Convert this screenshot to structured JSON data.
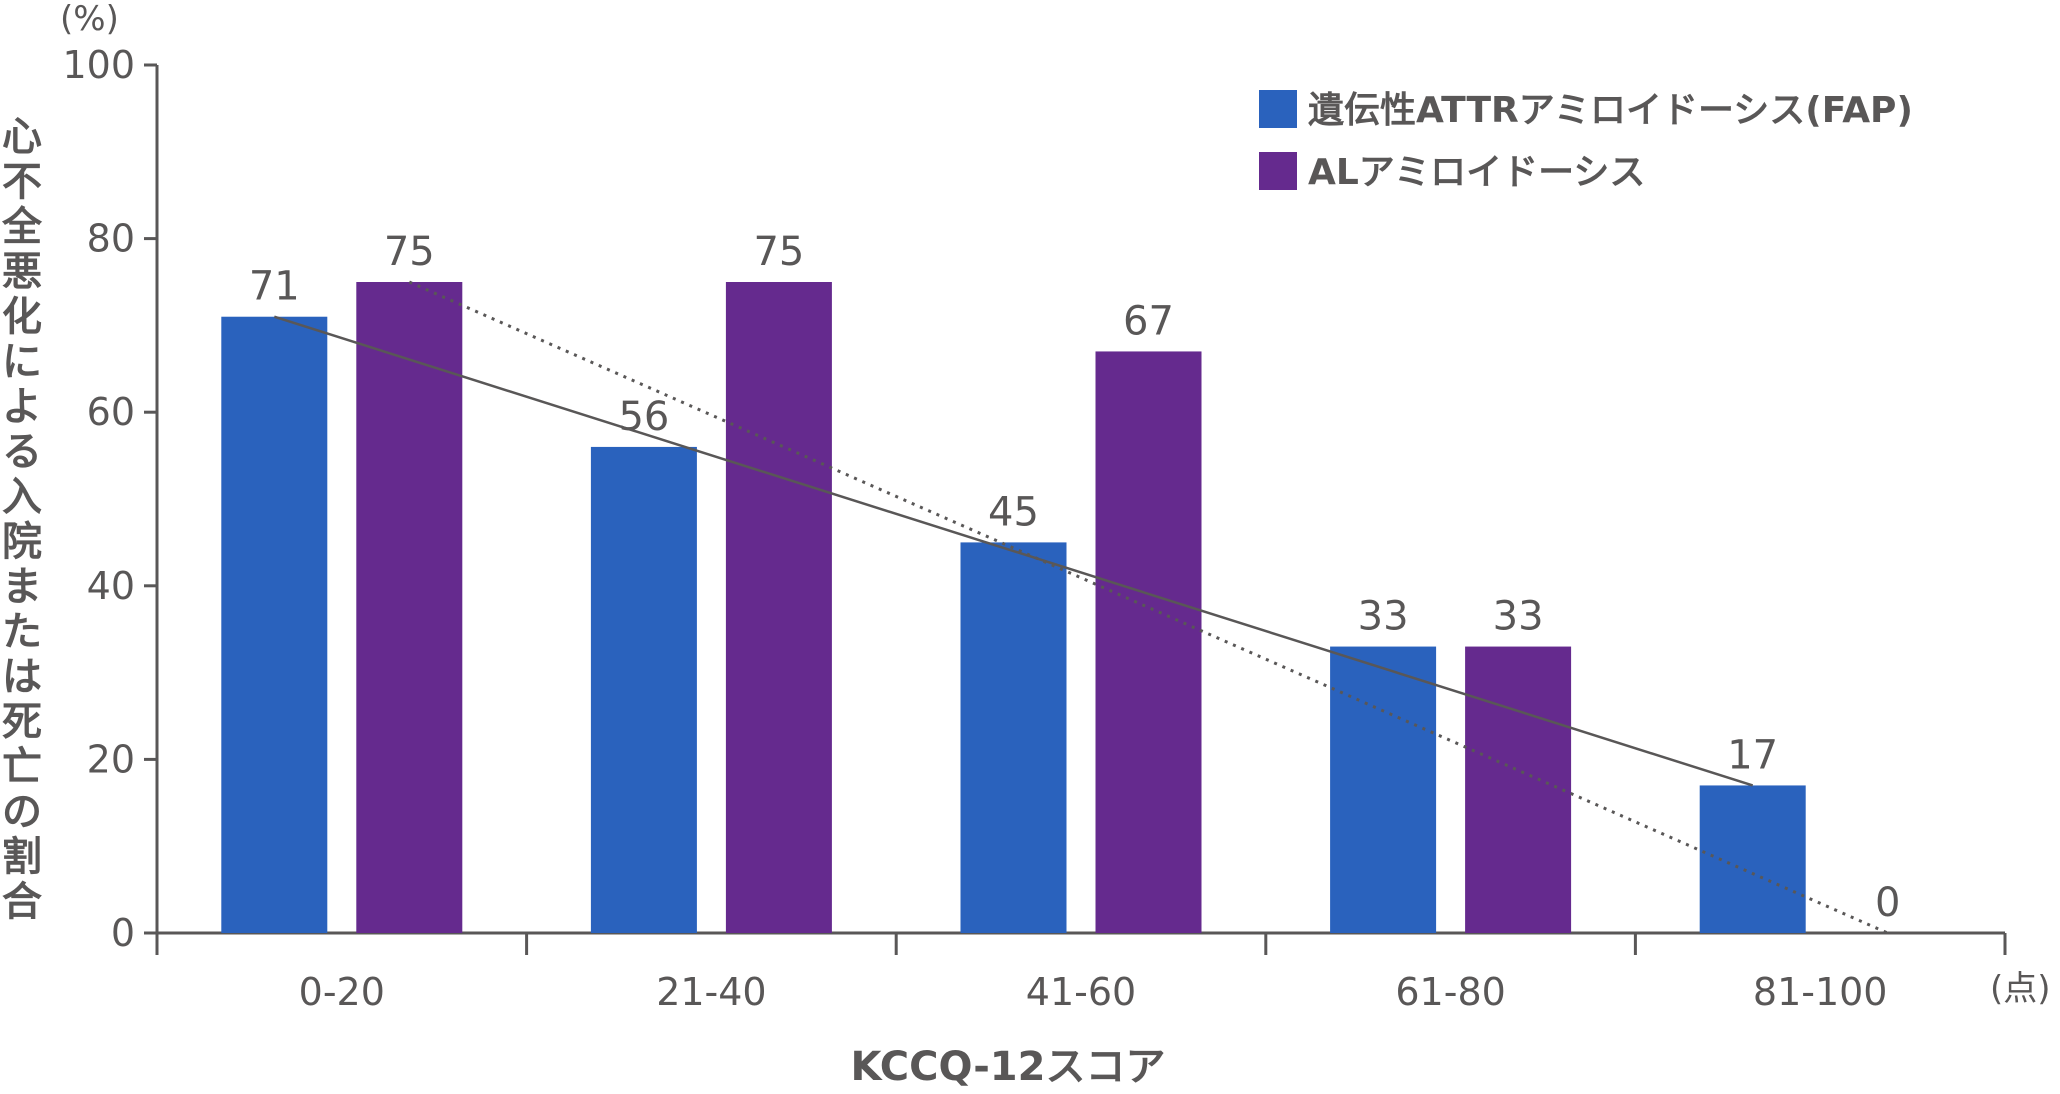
{
  "chart_data": {
    "type": "bar",
    "categories": [
      "0-20",
      "21-40",
      "41-60",
      "61-80",
      "81-100"
    ],
    "series": [
      {
        "name": "遺伝性ATTRアミロイドーシス(FAP)",
        "values": [
          71,
          56,
          45,
          33,
          17
        ],
        "color": "#2A62BD"
      },
      {
        "name": "ALアミロイドーシス",
        "values": [
          75,
          75,
          67,
          33,
          0
        ],
        "color": "#652A8E"
      }
    ],
    "trendlines": [
      {
        "series": "遺伝性ATTRアミロイドーシス(FAP)",
        "style": "solid",
        "from": {
          "category": "0-20",
          "value": 71
        },
        "to": {
          "category": "81-100",
          "value": 17
        }
      },
      {
        "series": "ALアミロイドーシス",
        "style": "dotted",
        "from": {
          "category": "0-20",
          "value": 75
        },
        "to": {
          "category": "81-100",
          "value": 0
        }
      }
    ],
    "data_labels": [
      [
        "71",
        "56",
        "45",
        "33",
        "17"
      ],
      [
        "75",
        "75",
        "67",
        "33",
        "0"
      ]
    ],
    "ylim": [
      0,
      100
    ],
    "yticks": [
      0,
      20,
      40,
      60,
      80,
      100
    ],
    "ylabel": "心不全悪化による入院または死亡の割合",
    "y_unit": "(%)",
    "xlabel": "KCCQ-12スコア",
    "x_unit": "(点)",
    "legend_position": "top-right",
    "grid": false,
    "axis_color": "#595757",
    "trendline_color": "#595757"
  }
}
